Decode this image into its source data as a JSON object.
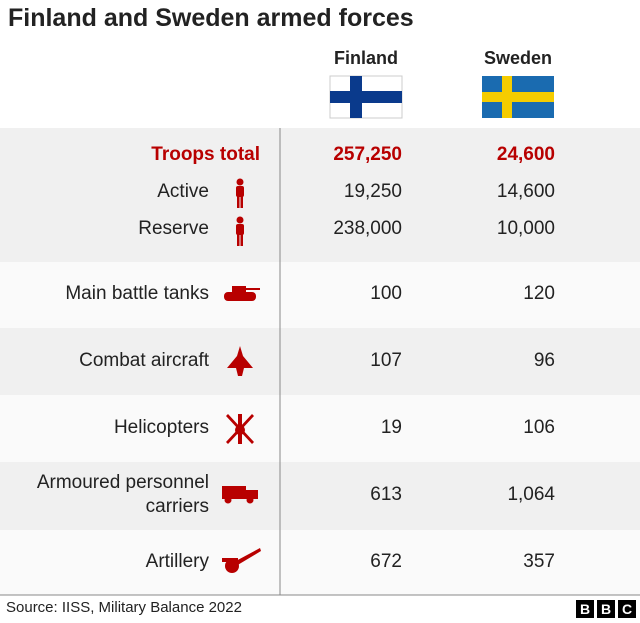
{
  "title": "Finland and Sweden armed forces",
  "columns": [
    "Finland",
    "Sweden"
  ],
  "rows": [
    {
      "label": "Troops total",
      "values": [
        "257,250",
        "24,600"
      ]
    },
    {
      "label": "Active",
      "values": [
        "19,250",
        "14,600"
      ]
    },
    {
      "label": "Reserve",
      "values": [
        "238,000",
        "10,000"
      ]
    },
    {
      "label": "Main battle tanks",
      "values": [
        "100",
        "120"
      ]
    },
    {
      "label": "Combat aircraft",
      "values": [
        "107",
        "96"
      ]
    },
    {
      "label": "Helicopters",
      "values": [
        "19",
        "106"
      ]
    },
    {
      "label": "Armoured personnel carriers",
      "values": [
        "613",
        "1,064"
      ]
    },
    {
      "label": "Artillery",
      "values": [
        "672",
        "357"
      ]
    }
  ],
  "source": "Source: IISS, Military Balance 2022",
  "logo": [
    "B",
    "B",
    "C"
  ]
}
